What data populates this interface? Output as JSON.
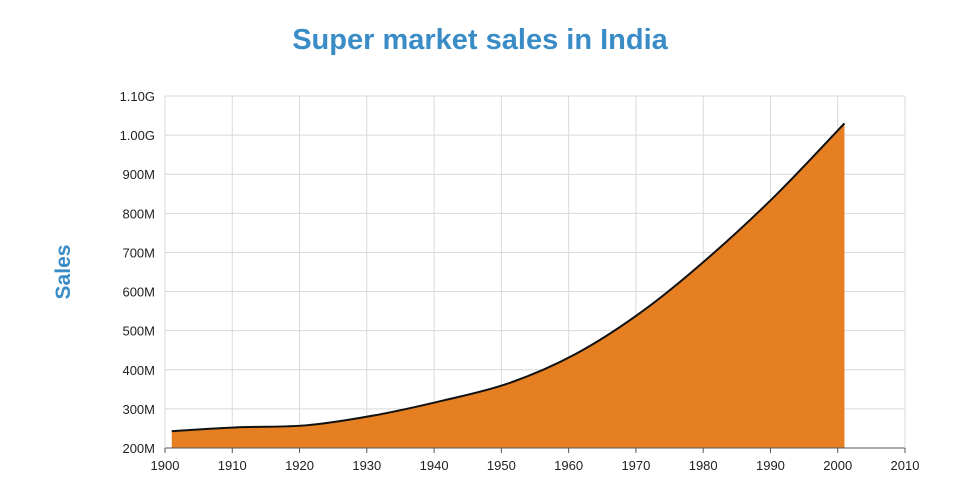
{
  "chart_data": {
    "type": "area",
    "title": "Super market sales in India",
    "xlabel": "",
    "ylabel": "Sales",
    "x": [
      1901,
      1911,
      1921,
      1931,
      1941,
      1951,
      1961,
      1971,
      1981,
      1991,
      2001
    ],
    "series": [
      {
        "values": [
          243000000,
          253000000,
          258000000,
          283000000,
          320000000,
          365000000,
          440000000,
          550000000,
          690000000,
          850000000,
          1030000000
        ]
      }
    ],
    "xlim": [
      1900,
      2010
    ],
    "ylim": [
      200000000,
      1100000000
    ],
    "x_ticks": [
      "1900",
      "1910",
      "1920",
      "1930",
      "1940",
      "1950",
      "1960",
      "1970",
      "1980",
      "1990",
      "2000",
      "2010"
    ],
    "y_ticks": [
      "200M",
      "300M",
      "400M",
      "500M",
      "600M",
      "700M",
      "800M",
      "900M",
      "1.00G",
      "1.10G"
    ],
    "grid": true,
    "fill_color": "#e67f22",
    "line_color": "#111111",
    "title_color": "#3a8cc7"
  }
}
